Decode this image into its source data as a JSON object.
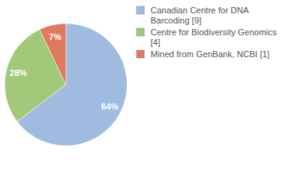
{
  "chart_data": {
    "type": "pie",
    "categories": [
      "Canadian Centre for DNA Barcoding [9]",
      "Centre for Biodiversity Genomics [4]",
      "Mined from GenBank, NCBI [1]"
    ],
    "values": [
      64,
      28,
      7
    ],
    "value_labels": [
      "64%",
      "28%",
      "7%"
    ],
    "colors": [
      "#9fbbe0",
      "#a2c97a",
      "#e07a5f"
    ],
    "data_labels": true,
    "legend": "top-right"
  }
}
